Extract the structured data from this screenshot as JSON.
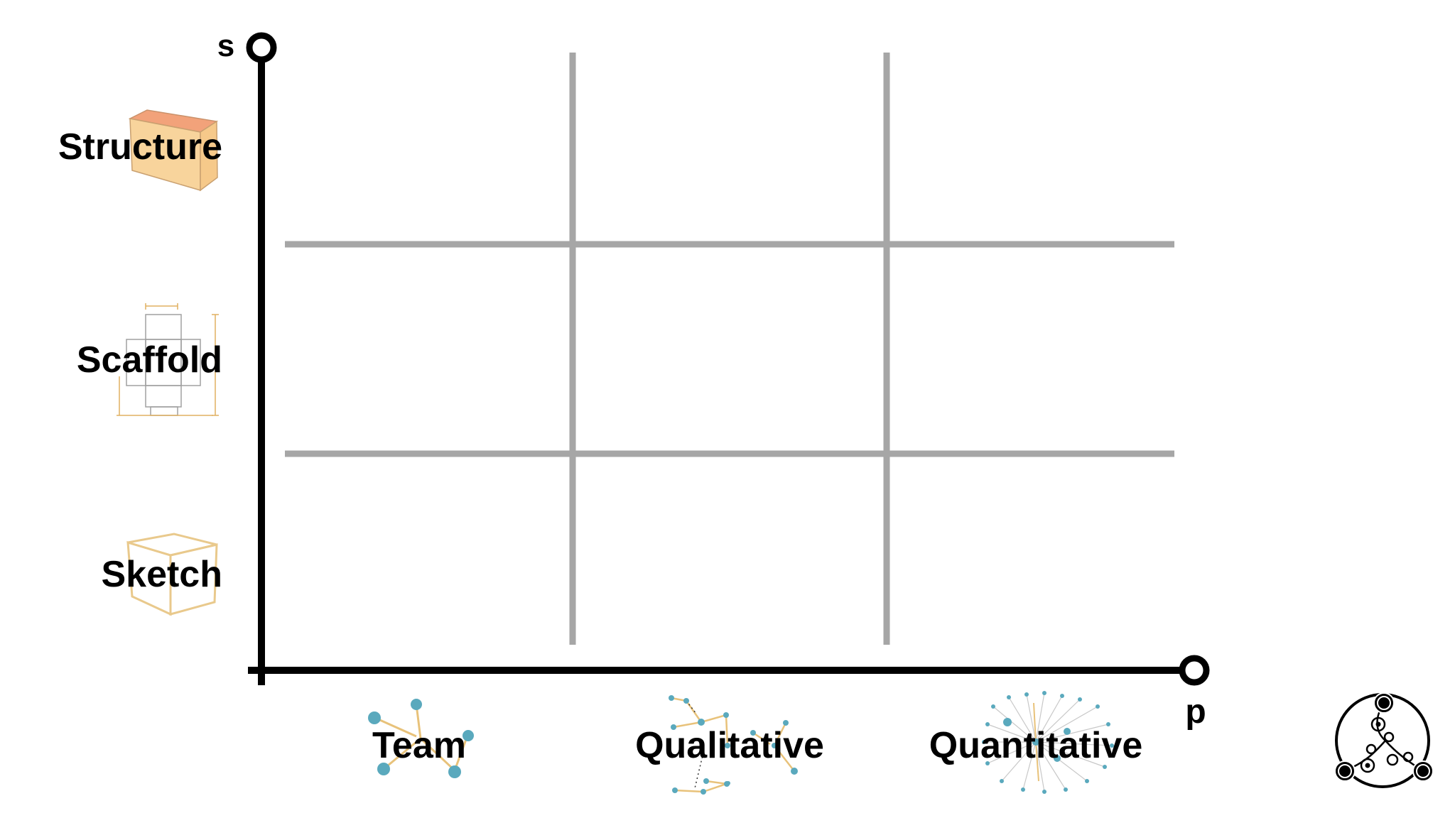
{
  "axes": {
    "y_label": "s",
    "x_label": "p"
  },
  "rows": [
    {
      "label": "Structure",
      "icon": "solid-cube-icon"
    },
    {
      "label": "Scaffold",
      "icon": "unfolded-box-net-icon"
    },
    {
      "label": "Sketch",
      "icon": "sketched-cube-icon"
    }
  ],
  "columns": [
    {
      "label": "Team",
      "icon": "small-network-icon"
    },
    {
      "label": "Qualitative",
      "icon": "medium-network-icon"
    },
    {
      "label": "Quantitative",
      "icon": "radial-network-icon"
    }
  ],
  "logo": {
    "icon": "three-node-circle-logo-icon"
  },
  "colors": {
    "axis": "#000000",
    "grid": "#a6a6a6",
    "network_node": "#5aa9bd",
    "network_edge": "#e8c27a",
    "cube_fill": "#f6c98a",
    "cube_top": "#f2a27a",
    "sketch_line": "#e9c98c"
  }
}
